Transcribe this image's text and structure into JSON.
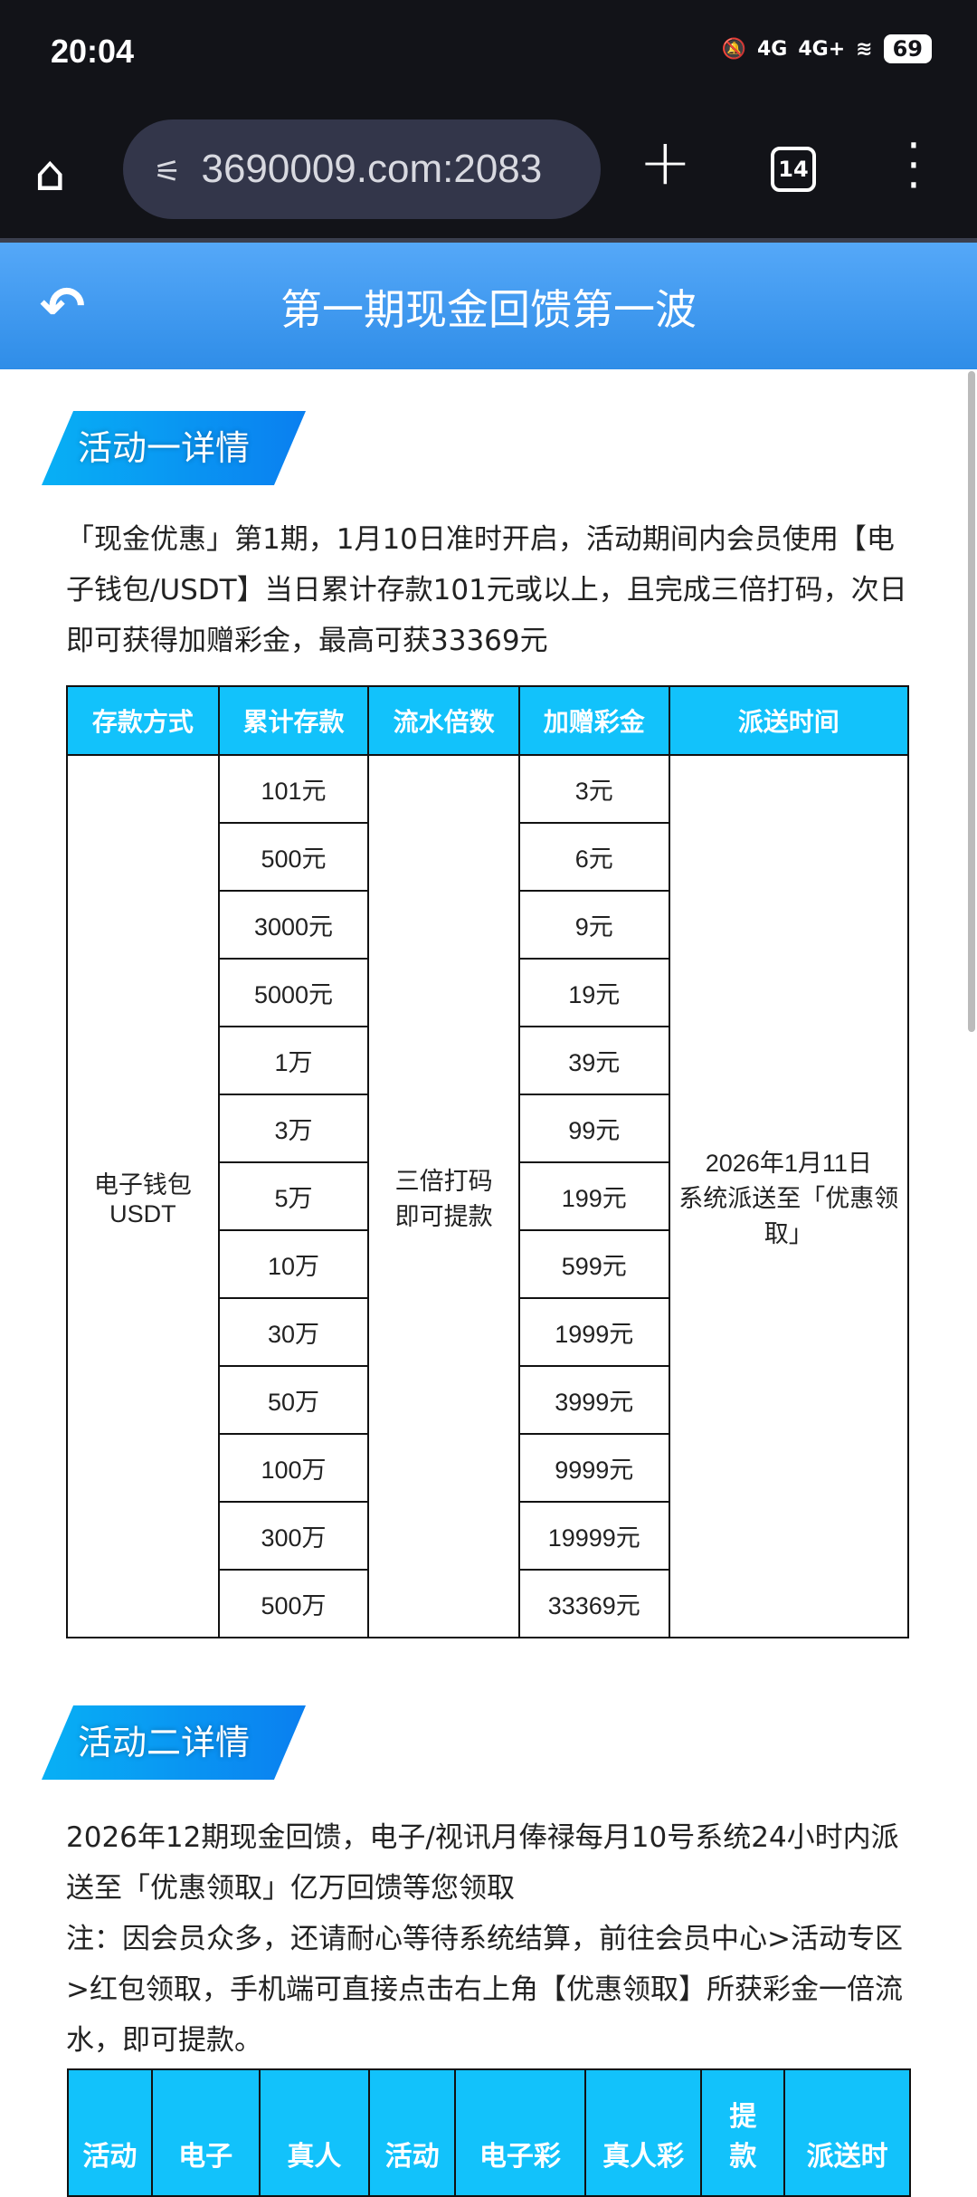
{
  "status_bar": {
    "time": "20:04",
    "network1": "4G",
    "network2": "4G+",
    "battery": "69"
  },
  "browser": {
    "url": "3690009.com:2083",
    "tab_count": "14"
  },
  "header": {
    "title": "第一期现金回馈第一波"
  },
  "section1": {
    "badge": "活动一详情",
    "text": "「现金优惠」第1期，1月10日准时开启，活动期间内会员使用【电子钱包/USDT】当日累计存款101元或以上，且完成三倍打码，次日即可获得加赠彩金，最高可获33369元",
    "table": {
      "headers": [
        "存款方式",
        "累计存款",
        "流水倍数",
        "加赠彩金",
        "派送时间"
      ],
      "method": "电子钱包 USDT",
      "turnover": "三倍打码 即可提款",
      "delivery": "2026年1月11日 系统派送至「优惠领取」",
      "deposits": [
        "101元",
        "500元",
        "3000元",
        "5000元",
        "1万",
        "3万",
        "5万",
        "10万",
        "30万",
        "50万",
        "100万",
        "300万",
        "500万"
      ],
      "bonuses": [
        "3元",
        "6元",
        "9元",
        "19元",
        "39元",
        "99元",
        "199元",
        "599元",
        "1999元",
        "3999元",
        "9999元",
        "19999元",
        "33369元"
      ]
    }
  },
  "section2": {
    "badge": "活动二详情",
    "text": "2026年12期现金回馈，电子/视讯月俸禄每月10号系统24小时内派送至「优惠领取」亿万回馈等您领取",
    "note": "注：因会员众多，还请耐心等待系统结算，前往会员中心>活动专区>红包领取，手机端可直接点击右上角【优惠领取】所获彩金一倍流水，即可提款。",
    "table": {
      "headers": [
        "活动",
        "电子",
        "真人",
        "活动",
        "电子彩",
        "真人彩",
        "提\n款",
        "派送时"
      ]
    }
  }
}
